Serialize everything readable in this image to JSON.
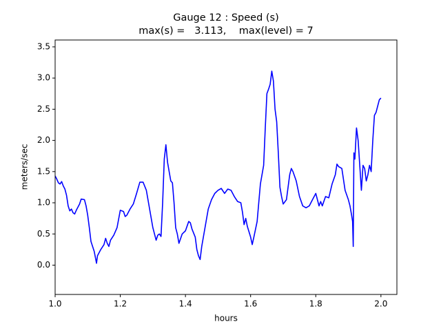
{
  "chart_data": {
    "type": "line",
    "title": "Gauge 12 : Speed (s)",
    "subtitle": "max(s) =   3.113,    max(level) = 7",
    "x_label": "hours",
    "y_label": "meters/sec",
    "color": "#0000ff",
    "xlim": [
      1.0,
      2.049
    ],
    "ylim": [
      -0.47,
      3.61
    ],
    "xticks": [
      {
        "value": 1,
        "label": "1.0"
      },
      1.2,
      1.4,
      1.6,
      1.8,
      {
        "value": 2,
        "label": "2.0"
      }
    ],
    "yticks": [
      {
        "value": 0,
        "label": "0.0"
      },
      0.5,
      {
        "value": 1,
        "label": "1.0"
      },
      1.5,
      {
        "value": 2,
        "label": "2.0"
      },
      2.5,
      {
        "value": 3,
        "label": "3.0"
      },
      3.5
    ],
    "x": [
      1.0,
      1.005,
      1.01,
      1.015,
      1.02,
      1.025,
      1.03,
      1.035,
      1.04,
      1.045,
      1.05,
      1.055,
      1.06,
      1.065,
      1.07,
      1.075,
      1.08,
      1.09,
      1.095,
      1.1,
      1.105,
      1.11,
      1.12,
      1.127,
      1.13,
      1.14,
      1.15,
      1.155,
      1.16,
      1.165,
      1.17,
      1.18,
      1.19,
      1.2,
      1.21,
      1.215,
      1.22,
      1.23,
      1.24,
      1.25,
      1.26,
      1.27,
      1.28,
      1.29,
      1.3,
      1.31,
      1.315,
      1.32,
      1.325,
      1.33,
      1.335,
      1.34,
      1.345,
      1.35,
      1.355,
      1.36,
      1.365,
      1.37,
      1.375,
      1.38,
      1.39,
      1.4,
      1.41,
      1.415,
      1.42,
      1.43,
      1.435,
      1.44,
      1.445,
      1.45,
      1.46,
      1.47,
      1.48,
      1.49,
      1.5,
      1.51,
      1.52,
      1.53,
      1.54,
      1.55,
      1.56,
      1.57,
      1.575,
      1.58,
      1.585,
      1.59,
      1.6,
      1.605,
      1.61,
      1.62,
      1.63,
      1.64,
      1.645,
      1.65,
      1.655,
      1.66,
      1.665,
      1.67,
      1.675,
      1.68,
      1.685,
      1.69,
      1.695,
      1.7,
      1.71,
      1.72,
      1.725,
      1.73,
      1.74,
      1.75,
      1.76,
      1.77,
      1.78,
      1.79,
      1.8,
      1.81,
      1.815,
      1.82,
      1.83,
      1.84,
      1.85,
      1.86,
      1.865,
      1.87,
      1.88,
      1.89,
      1.9,
      1.905,
      1.91,
      1.913,
      1.915,
      1.917,
      1.92,
      1.925,
      1.93,
      1.935,
      1.94,
      1.945,
      1.95,
      1.955,
      1.96,
      1.965,
      1.97,
      1.975,
      1.98,
      1.985,
      1.99,
      1.995,
      2.0
    ],
    "values": [
      1.43,
      1.38,
      1.32,
      1.3,
      1.34,
      1.27,
      1.22,
      1.12,
      0.95,
      0.87,
      0.9,
      0.84,
      0.82,
      0.88,
      0.93,
      0.98,
      1.06,
      1.05,
      0.95,
      0.8,
      0.6,
      0.38,
      0.22,
      0.03,
      0.15,
      0.25,
      0.33,
      0.43,
      0.35,
      0.3,
      0.4,
      0.48,
      0.6,
      0.88,
      0.86,
      0.78,
      0.8,
      0.9,
      0.98,
      1.15,
      1.33,
      1.33,
      1.2,
      0.9,
      0.6,
      0.4,
      0.48,
      0.5,
      0.46,
      1.0,
      1.7,
      1.93,
      1.65,
      1.5,
      1.35,
      1.32,
      1.0,
      0.6,
      0.5,
      0.35,
      0.5,
      0.55,
      0.7,
      0.68,
      0.58,
      0.45,
      0.25,
      0.15,
      0.09,
      0.3,
      0.6,
      0.9,
      1.05,
      1.15,
      1.2,
      1.23,
      1.15,
      1.22,
      1.2,
      1.1,
      1.02,
      1.0,
      0.85,
      0.65,
      0.75,
      0.62,
      0.45,
      0.33,
      0.45,
      0.7,
      1.3,
      1.6,
      2.2,
      2.75,
      2.82,
      2.9,
      3.11,
      2.95,
      2.5,
      2.3,
      1.8,
      1.25,
      1.1,
      0.98,
      1.05,
      1.45,
      1.55,
      1.5,
      1.35,
      1.1,
      0.95,
      0.92,
      0.95,
      1.05,
      1.15,
      0.95,
      1.02,
      0.95,
      1.1,
      1.08,
      1.3,
      1.45,
      1.62,
      1.58,
      1.55,
      1.2,
      1.05,
      0.95,
      0.8,
      0.7,
      0.3,
      1.8,
      1.7,
      2.2,
      2.0,
      1.6,
      1.2,
      1.6,
      1.55,
      1.35,
      1.45,
      1.6,
      1.5,
      2.0,
      2.4,
      2.45,
      2.55,
      2.65,
      2.68
    ]
  }
}
